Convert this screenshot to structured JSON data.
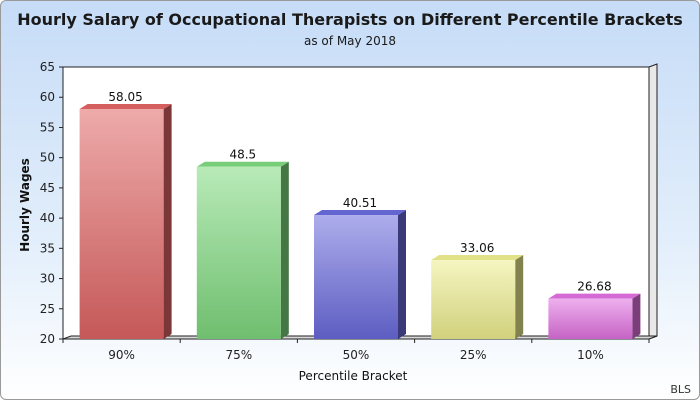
{
  "chart_data": {
    "type": "bar",
    "title": "Hourly Salary of Occupational Therapists on Different Percentile Brackets",
    "subtitle": "as of May 2018",
    "xlabel": "Percentile Bracket",
    "ylabel": "Hourly Wages",
    "categories": [
      "90%",
      "75%",
      "50%",
      "25%",
      "10%"
    ],
    "values": [
      58.05,
      48.5,
      40.51,
      33.06,
      26.68
    ],
    "data_labels": [
      "58.05",
      "48.5",
      "40.51",
      "33.06",
      "26.68"
    ],
    "ylim": [
      20,
      65
    ],
    "yticks": [
      20,
      25,
      30,
      35,
      40,
      45,
      50,
      55,
      60,
      65
    ],
    "colors": [
      "#e06464",
      "#7ed87e",
      "#6a6adc",
      "#eded8e",
      "#e070e0"
    ],
    "grid": false,
    "legend": "none"
  },
  "source": "BLS"
}
